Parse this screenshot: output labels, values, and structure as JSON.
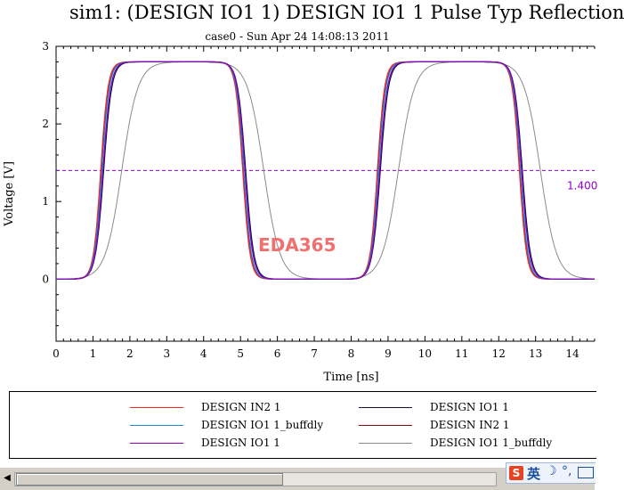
{
  "chart_data": {
    "type": "line",
    "title": "sim1: (DESIGN IO1 1) DESIGN IO1 1 Pulse Typ Reflection",
    "subtitle": "case0 - Sun Apr 24 14:08:13 2011",
    "xlabel": "Time [ns]",
    "ylabel": "Voltage [V]",
    "xlim": [
      0,
      14.6
    ],
    "ylim": [
      -0.8,
      3
    ],
    "x_ticks": [
      "0",
      "1",
      "2",
      "3",
      "4",
      "5",
      "6",
      "7",
      "8",
      "9",
      "10",
      "11",
      "12",
      "13",
      "14"
    ],
    "y_ticks": [
      "0",
      "1",
      "2",
      "3"
    ],
    "grid": false,
    "reference_line": {
      "y": 1.4,
      "label": "1.400",
      "color": "#9400d3",
      "style": "dashed"
    },
    "watermark": "EDA365",
    "series": [
      {
        "name": "DESIGN IN2 1",
        "color": "#ff2020",
        "edges": [
          0.95,
          4.8,
          8.45,
          12.3
        ],
        "tau": 0.26,
        "delay": 0.0,
        "low": 0,
        "high": 2.8
      },
      {
        "name": "DESIGN IO1 1_buffdly",
        "color": "#1c8ad0",
        "edges": [
          0.95,
          4.8,
          8.45,
          12.3
        ],
        "tau": 0.27,
        "delay": 0.02,
        "low": 0,
        "high": 2.8
      },
      {
        "name": "DESIGN IO1 1",
        "color": "#8a00b8",
        "edges": [
          0.95,
          4.8,
          8.45,
          12.3
        ],
        "tau": 0.28,
        "delay": 0.04,
        "low": 0,
        "high": 2.8
      },
      {
        "name": "DESIGN IO1 1",
        "color": "#101040",
        "edges": [
          0.95,
          4.8,
          8.45,
          12.3
        ],
        "tau": 0.29,
        "delay": 0.05,
        "low": 0,
        "high": 2.8
      },
      {
        "name": "DESIGN IN2 1",
        "color": "#801010",
        "edges": [
          0.95,
          4.8,
          8.45,
          12.3
        ],
        "tau": 0.27,
        "delay": 0.01,
        "low": 0,
        "high": 2.8
      },
      {
        "name": "DESIGN IO1 1_buffdly",
        "color": "#8a8a8a",
        "edges": [
          0.95,
          4.8,
          8.45,
          12.3
        ],
        "tau": 0.58,
        "delay": 0.25,
        "low": 0,
        "high": 2.8
      }
    ]
  },
  "legend": {
    "items": [
      {
        "label": "DESIGN IN2 1",
        "color": "#ff2020"
      },
      {
        "label": "DESIGN IO1 1",
        "color": "#101040"
      },
      {
        "label": "DESIGN IO1 1_buffdly",
        "color": "#1c8ad0"
      },
      {
        "label": "DESIGN IN2 1",
        "color": "#801010"
      },
      {
        "label": "DESIGN IO1 1",
        "color": "#8a00b8"
      },
      {
        "label": "DESIGN IO1 1_buffdly",
        "color": "#8a8a8a"
      }
    ]
  },
  "taskbar": {
    "ime_logo": "S",
    "ime_lang": "英",
    "ime_moon": "☽",
    "ime_punct": "°,",
    "scroll_left_icon": "left-arrow-icon",
    "keyboard_icon": "keyboard-icon"
  }
}
